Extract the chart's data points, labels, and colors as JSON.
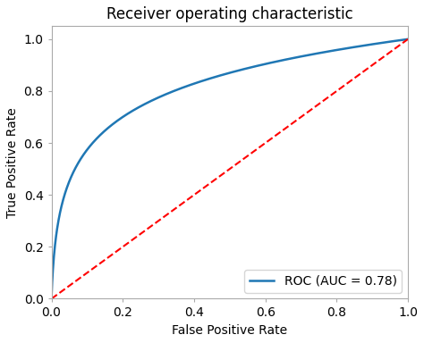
{
  "title": "Receiver operating characteristic",
  "xlabel": "False Positive Rate",
  "ylabel": "True Positive Rate",
  "legend_label": "ROC (AUC = 0.78)",
  "xlim": [
    0.0,
    1.0
  ],
  "ylim": [
    0.0,
    1.05
  ],
  "roc_color": "#1f77b4",
  "diag_color": "red",
  "roc_linewidth": 1.8,
  "diag_linewidth": 1.5,
  "title_fontsize": 12,
  "label_fontsize": 10,
  "tick_fontsize": 10,
  "legend_fontsize": 10,
  "xticks": [
    0.0,
    0.2,
    0.4,
    0.6,
    0.8,
    1.0
  ],
  "yticks": [
    0.0,
    0.2,
    0.4,
    0.6,
    0.8,
    1.0
  ],
  "curve_alpha": 0.18,
  "curve_beta": 0.55
}
